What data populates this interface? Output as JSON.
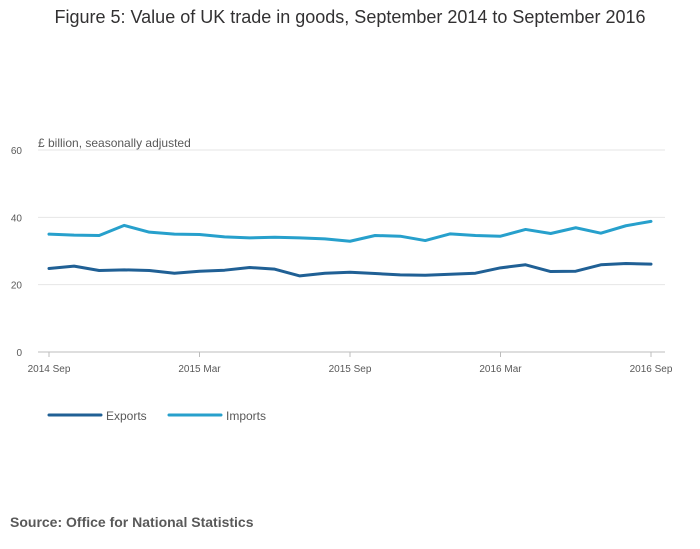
{
  "chart_data": {
    "type": "line",
    "title": "Figure 5: Value of UK trade in goods, September 2014 to September 2016",
    "ylabel": "£ billion, seasonally adjusted",
    "source": "Source: Office for National Statistics",
    "ylim": [
      0,
      60
    ],
    "yticks": [
      0,
      20,
      40,
      60
    ],
    "x": [
      "2014 Sep",
      "2014 Oct",
      "2014 Nov",
      "2014 Dec",
      "2015 Jan",
      "2015 Feb",
      "2015 Mar",
      "2015 Apr",
      "2015 May",
      "2015 Jun",
      "2015 Jul",
      "2015 Aug",
      "2015 Sep",
      "2015 Oct",
      "2015 Nov",
      "2015 Dec",
      "2016 Jan",
      "2016 Feb",
      "2016 Mar",
      "2016 Apr",
      "2016 May",
      "2016 Jun",
      "2016 Jul",
      "2016 Aug",
      "2016 Sep"
    ],
    "xtick_labels": [
      "2014 Sep",
      "2015 Mar",
      "2015 Sep",
      "2016 Mar",
      "2016 Sep"
    ],
    "grid": true,
    "legend": "bottom-left",
    "series": [
      {
        "name": "Exports",
        "color": "#206095",
        "values": [
          24.8,
          25.5,
          24.2,
          24.4,
          24.2,
          23.4,
          24.0,
          24.3,
          25.1,
          24.6,
          22.6,
          23.4,
          23.7,
          23.3,
          22.9,
          22.8,
          23.1,
          23.4,
          25.0,
          25.9,
          23.9,
          24.0,
          25.9,
          26.3,
          26.1
        ]
      },
      {
        "name": "Imports",
        "color": "#27a0cc",
        "values": [
          35.0,
          34.7,
          34.6,
          37.6,
          35.6,
          35.0,
          34.9,
          34.2,
          33.9,
          34.1,
          33.9,
          33.6,
          32.9,
          34.6,
          34.4,
          33.1,
          35.1,
          34.6,
          34.4,
          36.4,
          35.2,
          36.9,
          35.3,
          37.5,
          38.8
        ]
      }
    ]
  }
}
